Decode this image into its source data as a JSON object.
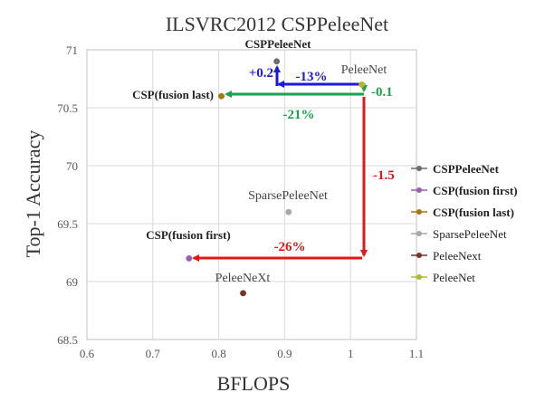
{
  "chart_data": {
    "type": "scatter",
    "title": "ILSVRC2012 CSPPeleeNet",
    "xlabel": "BFLOPS",
    "ylabel": "Top-1 Accuracy",
    "xlim": [
      0.6,
      1.1
    ],
    "ylim": [
      68.5,
      71
    ],
    "xticks": [
      "0.6",
      "0.7",
      "0.8",
      "0.9",
      "1",
      "1.1"
    ],
    "yticks": [
      "68.5",
      "69",
      "69.5",
      "70",
      "70.5",
      "71"
    ],
    "grid": true,
    "legend_position": "right",
    "series": [
      {
        "name": "CSPPeleeNet",
        "color": "#6d6d6d",
        "x": 0.888,
        "y": 70.9
      },
      {
        "name": "CSP(fusion first)",
        "color": "#9a5fb4",
        "x": 0.755,
        "y": 69.2
      },
      {
        "name": "CSP(fusion last)",
        "color": "#a6760e",
        "x": 0.804,
        "y": 70.6
      },
      {
        "name": "SparsePeleeNet",
        "color": "#a8a8a8",
        "x": 0.906,
        "y": 69.6
      },
      {
        "name": "PeleeNext",
        "color": "#7a3329",
        "x": 0.837,
        "y": 68.9
      },
      {
        "name": "PeleeNet",
        "color": "#b4b82a",
        "x": 1.017,
        "y": 70.7
      }
    ],
    "point_labels": [
      {
        "text": "CSPPeleeNet",
        "bold": true
      },
      {
        "text": "PeleeNet",
        "bold": false
      },
      {
        "text": "CSP(fusion last)",
        "bold": true
      },
      {
        "text": "SparsePeleeNet",
        "bold": false
      },
      {
        "text": "CSP(fusion first)",
        "bold": true
      },
      {
        "text": "PeleeNeXt",
        "bold": false
      }
    ],
    "annotations": [
      {
        "text": "+0.2",
        "color": "#1a1adb"
      },
      {
        "text": "-13%",
        "color": "#1a1adb"
      },
      {
        "text": "-0.1",
        "color": "#1aa34a"
      },
      {
        "text": "-21%",
        "color": "#1aa34a"
      },
      {
        "text": "-1.5",
        "color": "#e01818"
      },
      {
        "text": "-26%",
        "color": "#e01818"
      }
    ]
  }
}
